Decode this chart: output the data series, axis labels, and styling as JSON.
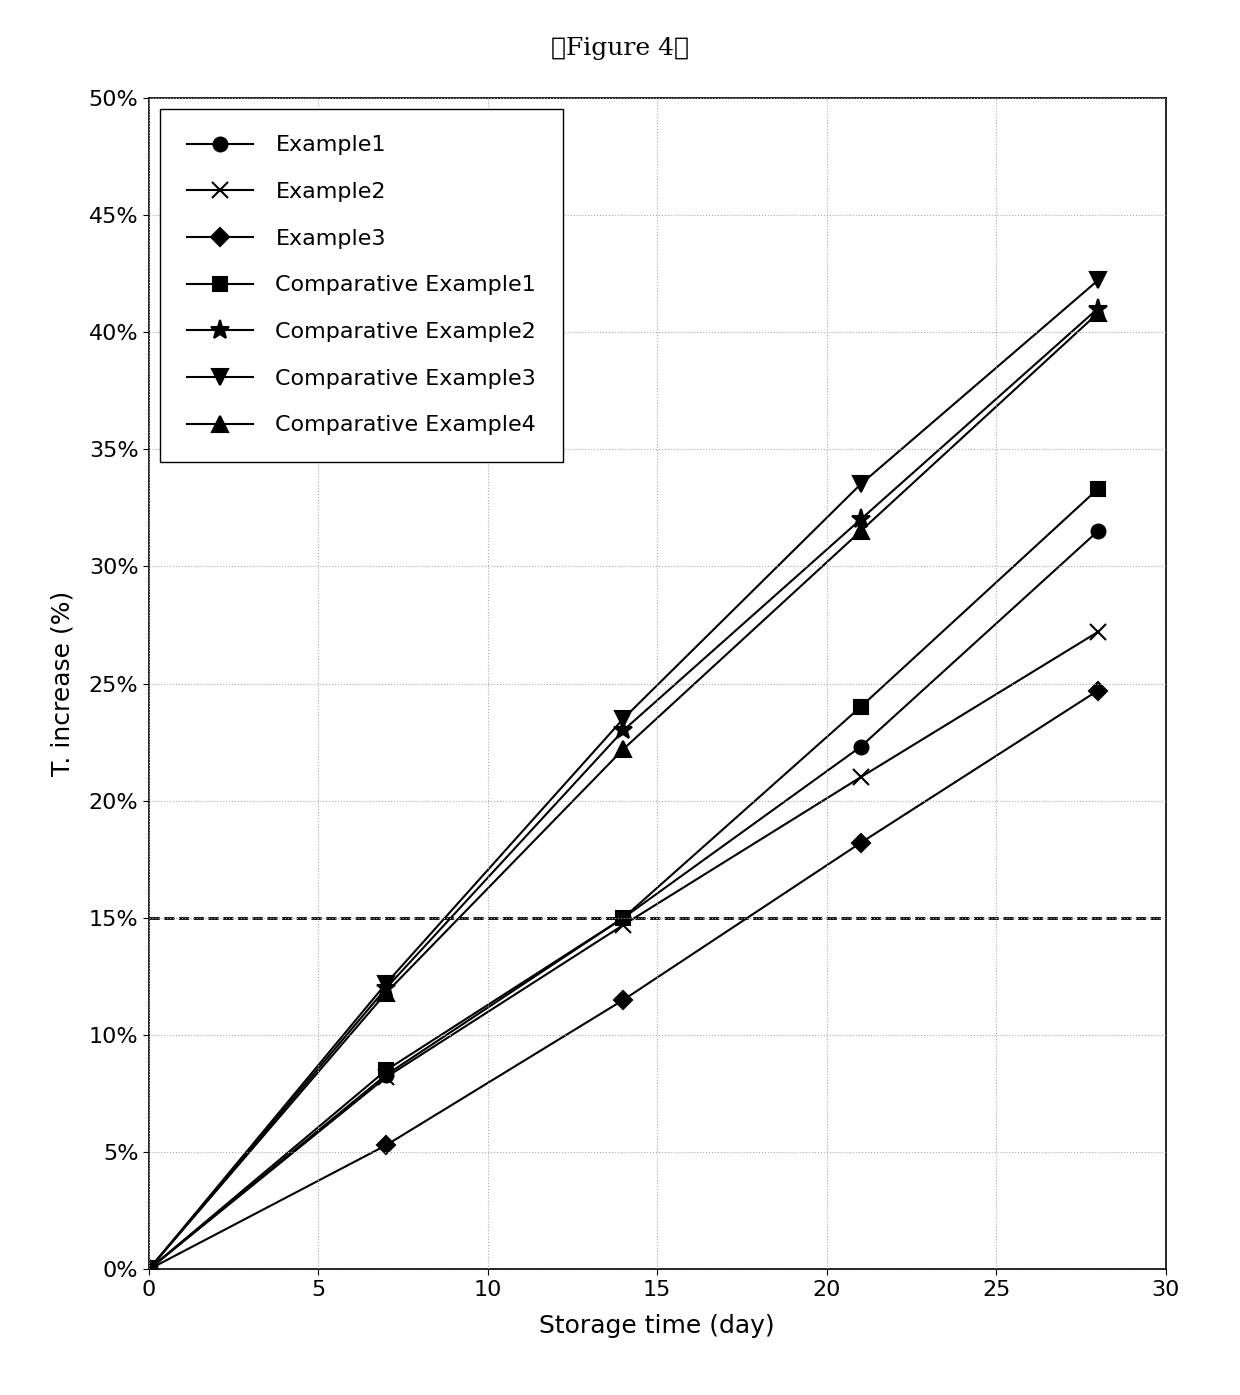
{
  "title": "【Figure 4】",
  "xlabel": "Storage time (day)",
  "ylabel": "T. increase (%)",
  "xlim": [
    0,
    30
  ],
  "ylim": [
    0,
    0.5
  ],
  "xticks": [
    0,
    5,
    10,
    15,
    20,
    25,
    30
  ],
  "yticks": [
    0.0,
    0.05,
    0.1,
    0.15,
    0.2,
    0.25,
    0.3,
    0.35,
    0.4,
    0.45,
    0.5
  ],
  "dashed_hline": 0.15,
  "series": [
    {
      "label": "Example1",
      "x": [
        0,
        7,
        14,
        21,
        28
      ],
      "y": [
        0,
        0.083,
        0.15,
        0.223,
        0.315
      ],
      "marker": "o",
      "markersize": 10,
      "color": "black",
      "linestyle": "-"
    },
    {
      "label": "Example2",
      "x": [
        0,
        7,
        14,
        21,
        28
      ],
      "y": [
        0,
        0.082,
        0.147,
        0.21,
        0.272
      ],
      "marker": "x",
      "markersize": 11,
      "color": "black",
      "linestyle": "-"
    },
    {
      "label": "Example3",
      "x": [
        0,
        7,
        14,
        21,
        28
      ],
      "y": [
        0,
        0.053,
        0.115,
        0.182,
        0.247
      ],
      "marker": "D",
      "markersize": 9,
      "color": "black",
      "linestyle": "-"
    },
    {
      "label": "Comparative Example1",
      "x": [
        0,
        7,
        14,
        21,
        28
      ],
      "y": [
        0,
        0.085,
        0.15,
        0.24,
        0.333
      ],
      "marker": "s",
      "markersize": 10,
      "color": "black",
      "linestyle": "-"
    },
    {
      "label": "Comparative Example2",
      "x": [
        0,
        7,
        14,
        21,
        28
      ],
      "y": [
        0,
        0.12,
        0.23,
        0.32,
        0.41
      ],
      "marker": "*",
      "markersize": 14,
      "color": "black",
      "linestyle": "-"
    },
    {
      "label": "Comparative Example3",
      "x": [
        0,
        7,
        14,
        21,
        28
      ],
      "y": [
        0,
        0.122,
        0.235,
        0.335,
        0.422
      ],
      "marker": "v",
      "markersize": 11,
      "color": "black",
      "linestyle": "-"
    },
    {
      "label": "Comparative Example4",
      "x": [
        0,
        7,
        14,
        21,
        28
      ],
      "y": [
        0,
        0.118,
        0.222,
        0.315,
        0.408
      ],
      "marker": "^",
      "markersize": 11,
      "color": "black",
      "linestyle": "-"
    }
  ],
  "grid_color": "#aaaaaa",
  "background_color": "#ffffff",
  "legend_fontsize": 16,
  "axis_label_fontsize": 18,
  "tick_fontsize": 16,
  "title_fontsize": 18
}
